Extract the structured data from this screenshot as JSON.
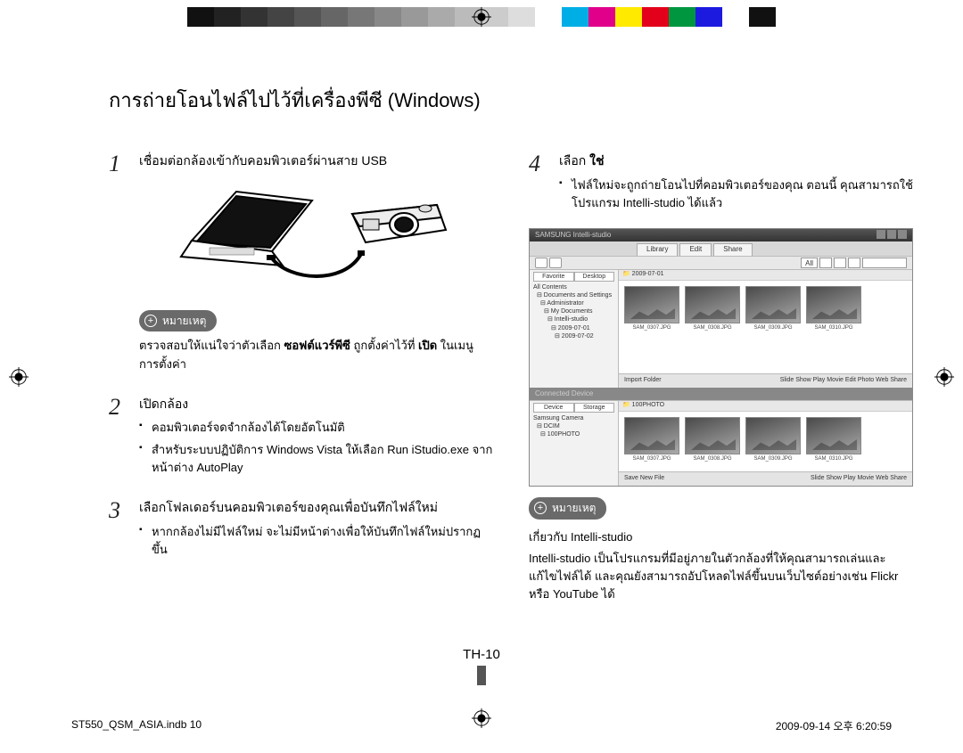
{
  "colorbar": [
    "#111",
    "#222",
    "#333",
    "#444",
    "#555",
    "#666",
    "#777",
    "#888",
    "#999",
    "#aaa",
    "#bbb",
    "#ccc",
    "#ddd",
    "#fff",
    "#00aee6",
    "#e0008a",
    "#ffea00",
    "#e2001a",
    "#00963f",
    "#1d1ae0",
    "#ffffff",
    "#111111"
  ],
  "title": "การถ่ายโอนไฟล์ไปไว้ที่เครื่องพีซี (Windows)",
  "steps": {
    "s1": {
      "num": "1",
      "text": "เชื่อมต่อกล้องเข้ากับคอมพิวเตอร์ผ่านสาย USB"
    },
    "s2": {
      "num": "2",
      "text": "เปิดกล้อง",
      "bullets": [
        "คอมพิวเตอร์จดจำกล้องได้โดยอัตโนมัติ",
        "สำหรับระบบปฏิบัติการ Windows Vista ให้เลือก Run iStudio.exe จากหน้าต่าง AutoPlay"
      ]
    },
    "s3": {
      "num": "3",
      "text": "เลือกโฟลเดอร์บนคอมพิวเตอร์ของคุณเพื่อบันทึกไฟล์ใหม่",
      "bullets": [
        "หากกล้องไม่มีไฟล์ใหม่ จะไม่มีหน้าต่างเพื่อให้บันทึกไฟล์ใหม่ปรากฏขึ้น"
      ]
    },
    "s4": {
      "num": "4",
      "text": "เลือก ใช่",
      "bullets": [
        "ไฟล์ใหม่จะถูกถ่ายโอนไปที่คอมพิวเตอร์ของคุณ ตอนนี้ คุณสามารถใช้โปรแกรม Intelli-studio ได้แล้ว"
      ]
    }
  },
  "note1": {
    "label": "หมายเหตุ",
    "text_a": "ตรวจสอบให้แน่ใจว่าตัวเลือก ",
    "text_bold": "ซอฟต์แวร์พีซี",
    "text_b": " ถูกตั้งค่าไว้ที่ ",
    "text_bold2": "เปิด",
    "text_c": " ในเมนูการตั้งค่า"
  },
  "note2": {
    "label": "หมายเหตุ",
    "heading": "เกี่ยวกับ Intelli-studio",
    "body": "Intelli-studio เป็นโปรแกรมที่มีอยู่ภายในตัวกล้องที่ให้คุณสามารถเล่นและแก้ไขไฟล์ได้ และคุณยังสามารถอัปโหลดไฟล์ขึ้นบนเว็บไซต์อย่างเช่น Flickr หรือ YouTube ได้"
  },
  "screenshot": {
    "window_title": "SAMSUNG Intelli-studio",
    "tabs": [
      "Library",
      "Edit",
      "Share"
    ],
    "filters": [
      "All"
    ],
    "side_tabs_top": [
      "Favorite",
      "Desktop"
    ],
    "tree_top": [
      "All Contents",
      "Documents and Settings",
      "Administrator",
      "My Documents",
      "Intelli-studio",
      "2009-07-01",
      "2009-07-02"
    ],
    "crumb_top": "2009-07-01",
    "thumbs_top": [
      "SAM_0307.JPG",
      "SAM_0308.JPG",
      "SAM_0309.JPG",
      "SAM_0310.JPG"
    ],
    "foot_top_left": "Import Folder",
    "foot_top_opts": [
      "Slide Show",
      "Play Movie",
      "Edit Photo",
      "Web Share"
    ],
    "browser_title": "Connected Device",
    "side_tabs_bot": [
      "Device",
      "Storage"
    ],
    "tree_bot": [
      "Samsung Camera",
      "DCIM",
      "100PHOTO"
    ],
    "crumb_bot": "100PHOTO",
    "thumbs_bot": [
      "SAM_0307.JPG",
      "SAM_0308.JPG",
      "SAM_0309.JPG",
      "SAM_0310.JPG"
    ],
    "foot_bot_left": "Save New File",
    "foot_bot_opts": [
      "Slide Show",
      "Play Movie",
      "",
      "Web Share"
    ]
  },
  "pagenum": "TH-10",
  "footer_left": "ST550_QSM_ASIA.indb   10",
  "footer_right": "2009-09-14   오후 6:20:59"
}
